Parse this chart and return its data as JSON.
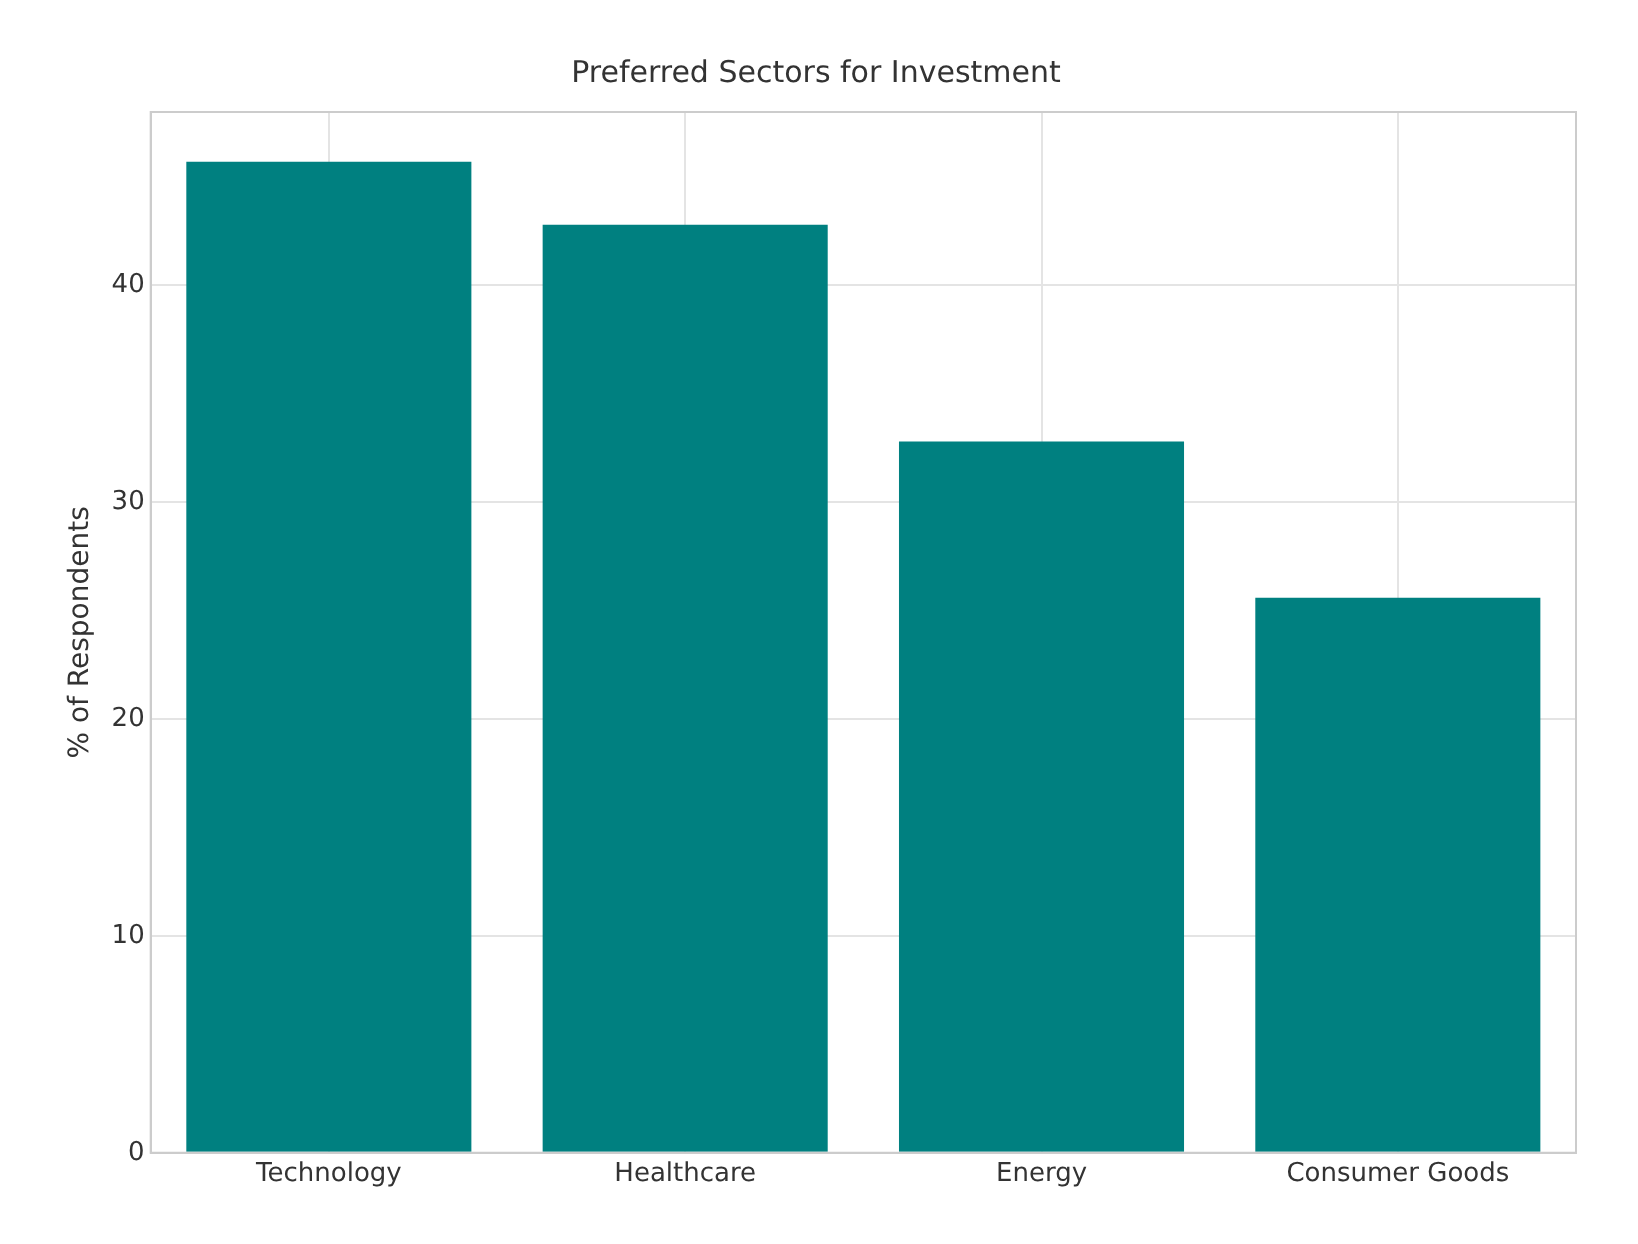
{
  "chart_data": {
    "type": "bar",
    "title": "Preferred Sectors for Investment",
    "ylabel": "% of Respondents",
    "categories": [
      "Technology",
      "Healthcare",
      "Energy",
      "Consumer Goods"
    ],
    "values": [
      45.7,
      42.8,
      32.8,
      25.6
    ],
    "color": "#008080",
    "ylim": [
      0,
      48
    ],
    "yticks": [
      0,
      10,
      20,
      30,
      40
    ],
    "grid": true
  }
}
